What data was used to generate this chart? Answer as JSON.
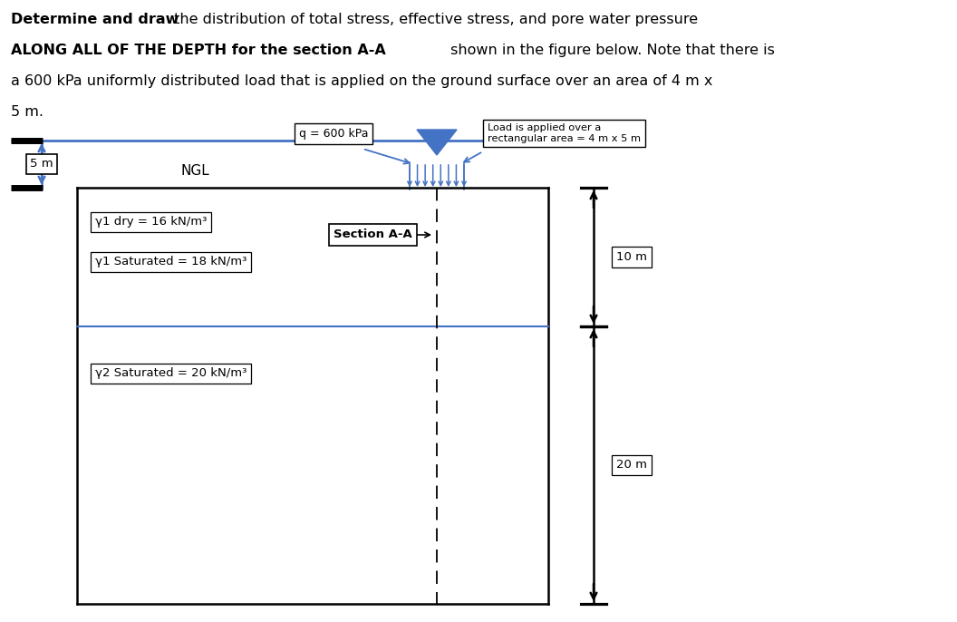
{
  "q_label": "q = 600 kPa",
  "load_note_line1": "Load is applied over a",
  "load_note_line2": "rectangular area = 4 m x 5 m",
  "ngl_label": "NGL",
  "section_aa_label": "Section A-A",
  "label_5m": "5 m",
  "label_10m": "10 m",
  "label_20m": "20 m",
  "gamma1_dry": "γ1 dry = 16 kN/m³",
  "gamma1_sat": "γ1 Saturated = 18 kN/m³",
  "gamma2_sat": "γ2 Saturated = 20 kN/m³",
  "blue_color": "#4472C4",
  "black_color": "#000000",
  "bg_color": "#FFFFFF",
  "fig_width": 10.56,
  "fig_height": 6.86,
  "title_fontsize": 11.5,
  "body_fontsize": 9.5,
  "note_fontsize": 8.5
}
